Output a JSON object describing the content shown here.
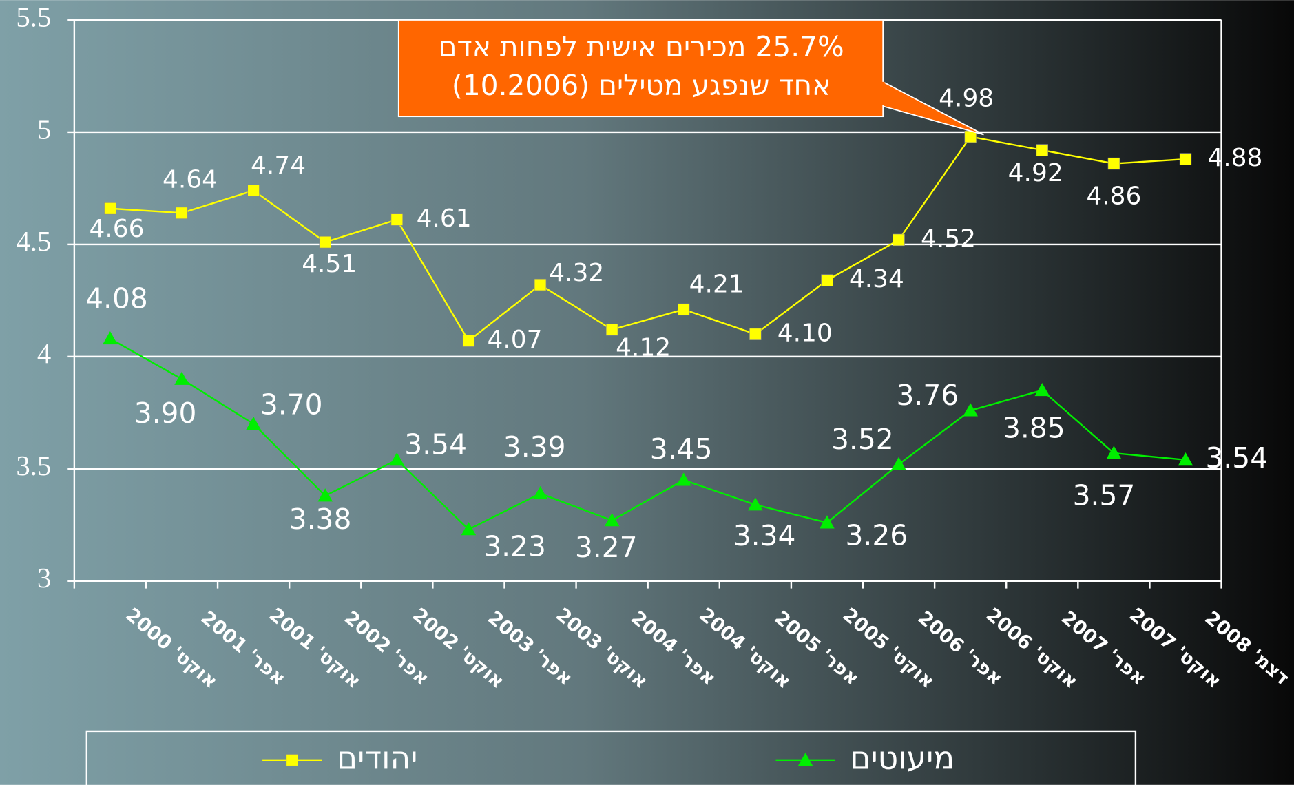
{
  "chart_data": {
    "type": "line",
    "categories": [
      "אוקט' 2000",
      "אפר' 2001",
      "אוקט' 2001",
      "אפר' 2002",
      "אוקט' 2002",
      "אפר' 2003",
      "אוקט' 2003",
      "אפר' 2004",
      "אוקט' 2004",
      "אפר' 2005",
      "אוקט' 2005",
      "אפר' 2006",
      "אוקט' 2006",
      "אפר' 2007",
      "אוקט' 2007",
      "דצמ' 2008"
    ],
    "series": [
      {
        "name": "יהודים",
        "color": "#ffff00",
        "marker": "square",
        "values": [
          4.66,
          4.64,
          4.74,
          4.51,
          4.61,
          4.07,
          4.32,
          4.12,
          4.21,
          4.1,
          4.34,
          4.52,
          4.98,
          4.92,
          4.86,
          4.88
        ],
        "value_labels": [
          "4.66",
          "4.64",
          "4.74",
          "4.51",
          "4.61",
          "4.07",
          "4.32",
          "4.12",
          "4.21",
          "4.10",
          "4.34",
          "4.52",
          "4.98",
          "4.92",
          "4.86",
          "4.88"
        ]
      },
      {
        "name": "מיעוטים",
        "color": "#00ee00",
        "marker": "triangle",
        "values": [
          4.08,
          3.9,
          3.7,
          3.38,
          3.54,
          3.23,
          3.39,
          3.27,
          3.45,
          3.34,
          3.26,
          3.52,
          3.76,
          3.85,
          3.57,
          3.54
        ],
        "value_labels": [
          "4.08",
          "3.90",
          "3.70",
          "3.38",
          "3.54",
          "3.23",
          "3.39",
          "3.27",
          "3.45",
          "3.34",
          "3.26",
          "3.52",
          "3.76",
          "3.85",
          "3.57",
          "3.54"
        ]
      }
    ],
    "ylim": [
      3,
      5.5
    ],
    "yticks": [
      3,
      3.5,
      4,
      4.5,
      5,
      5.5
    ],
    "grid": true,
    "annotation": [
      "25.7% מכירים אישית לפחות אדם",
      "אחד שנפגע מטילים (10.2006)"
    ]
  }
}
